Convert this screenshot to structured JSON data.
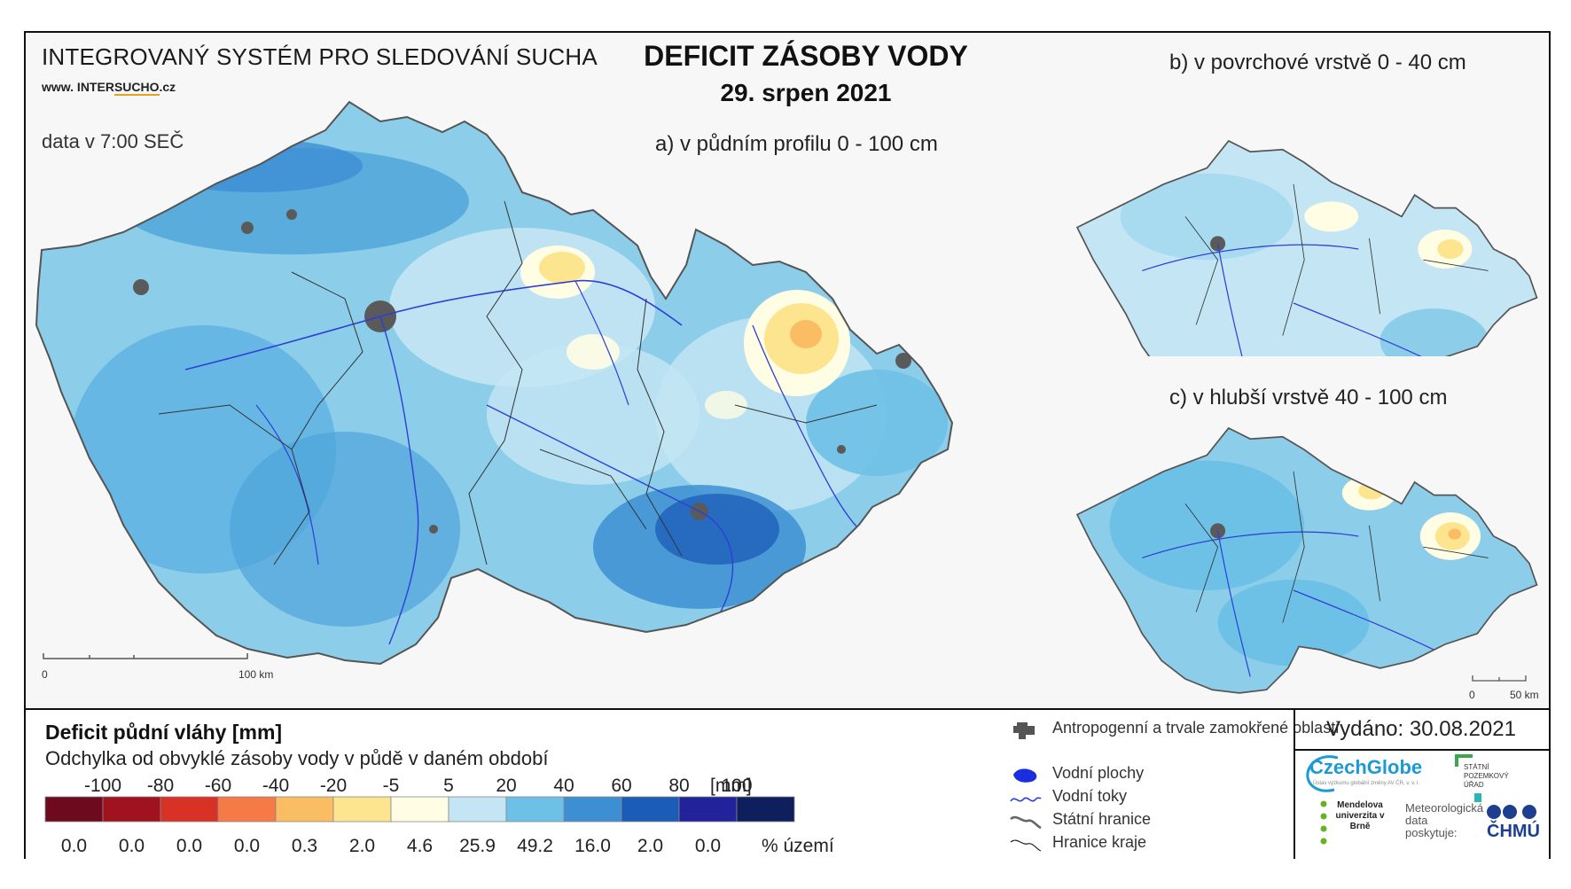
{
  "header": {
    "system_title": "INTEGROVANÝ SYSTÉM PRO SLEDOVÁNÍ SUCHA",
    "site_prefix": "www. INTER",
    "site_highlight": "SUCHO",
    "site_suffix": ".cz",
    "data_time": "data v 7:00 SEČ",
    "main_title": "DEFICIT ZÁSOBY VODY",
    "date": "29. srpen 2021"
  },
  "maps": {
    "a_label": "a) v půdním profilu 0 - 100 cm",
    "b_label": "b) v povrchové vrstvě 0 - 40 cm",
    "c_label": "c) v hlubší vrstvě 40 - 100 cm",
    "scale_main": {
      "zero": "0",
      "end": "100 km"
    },
    "scale_small": {
      "zero": "0",
      "end": "50 km"
    }
  },
  "legend": {
    "title": "Deficit půdní vláhy  [mm]",
    "subtitle": "Odchylka od obvyklé zásoby vody v půdě v daném období",
    "unit": "[mm]",
    "percent_label": "% území",
    "thresholds": [
      "-100",
      "-80",
      "-60",
      "-40",
      "-20",
      "-5",
      "5",
      "20",
      "40",
      "60",
      "80",
      "100"
    ],
    "classes": [
      {
        "color": "#6d0a1e",
        "percent": "0.0"
      },
      {
        "color": "#a1121f",
        "percent": "0.0"
      },
      {
        "color": "#d83226",
        "percent": "0.0"
      },
      {
        "color": "#f57a45",
        "percent": "0.0"
      },
      {
        "color": "#fbbd64",
        "percent": "0.3"
      },
      {
        "color": "#fde58f",
        "percent": "2.0"
      },
      {
        "color": "#fffde4",
        "percent": "4.6"
      },
      {
        "color": "#c4e6f4",
        "percent": "25.9"
      },
      {
        "color": "#6ec1e6",
        "percent": "49.2"
      },
      {
        "color": "#3d8fd4",
        "percent": "16.0"
      },
      {
        "color": "#1b5cb7",
        "percent": "2.0"
      },
      {
        "color": "#22229a",
        "percent": "0.0"
      },
      {
        "color": "#0f1f5e",
        "percent": null
      }
    ]
  },
  "symbols": {
    "urban": "Antropogenní a trvale zamokřené oblasti",
    "water_bodies": "Vodní plochy",
    "rivers": "Vodní toky",
    "state_border": "Státní hranice",
    "region_border": "Hranice kraje"
  },
  "issued": "Vydáno: 30.08.2021",
  "logos": {
    "czechglobe": "CzechGlobe",
    "czechglobe_sub": "Ústav výzkumu globální změny AV ČR, v. v. i.",
    "spu": "STÁTNÍ POZEMKOVÝ ÚŘAD",
    "mendel": "Mendelova univerzita v Brně",
    "meteo": "Meteorologická data poskytuje:",
    "chmu": "ČHMÚ"
  }
}
